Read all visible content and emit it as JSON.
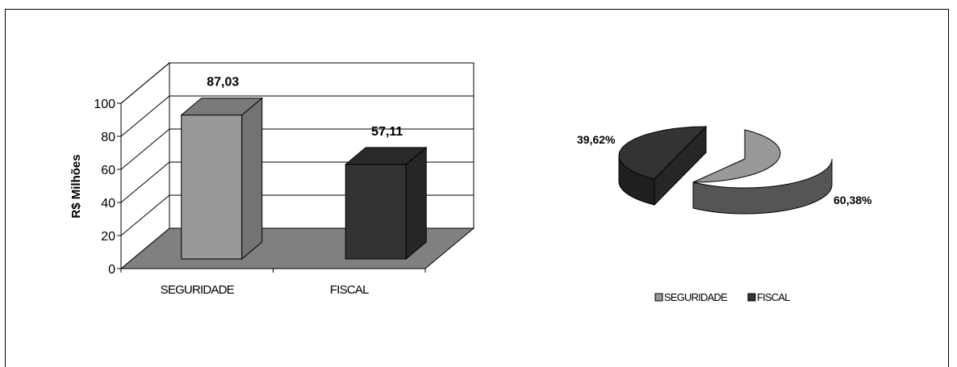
{
  "chart_data": [
    {
      "type": "bar",
      "ylabel": "R$ Milhões",
      "ylim": [
        0,
        100
      ],
      "yticks": [
        "0",
        "20",
        "40",
        "60",
        "80",
        "100"
      ],
      "categories": [
        "SEGURIDADE",
        "FISCAL"
      ],
      "values": [
        87.03,
        57.11
      ],
      "data_labels": [
        "87,03",
        "57,11"
      ],
      "colors": [
        "#999999",
        "#333333"
      ],
      "grid": true,
      "style": "3d"
    },
    {
      "type": "pie",
      "categories": [
        "SEGURIDADE",
        "FISCAL"
      ],
      "values": [
        60.38,
        39.62
      ],
      "data_labels": [
        "60,38%",
        "39,62%"
      ],
      "colors": [
        "#999999",
        "#333333"
      ],
      "legend": "bottom",
      "style": "3d-exploded"
    }
  ]
}
